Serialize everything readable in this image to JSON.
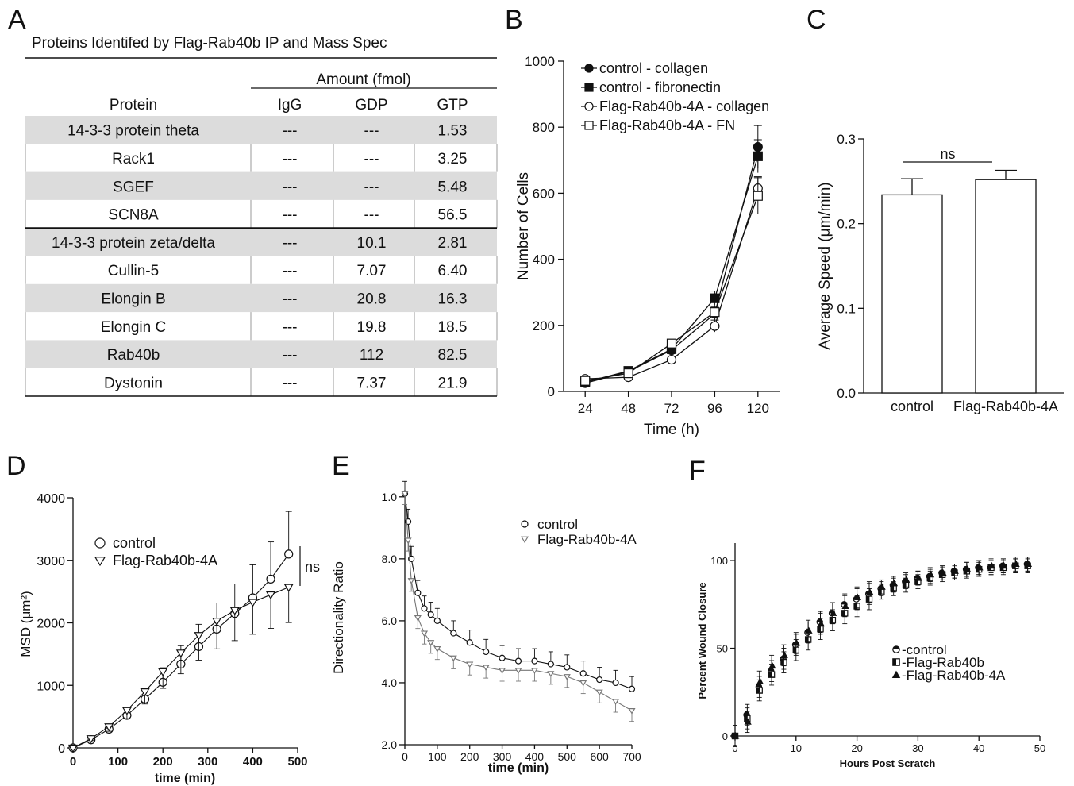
{
  "panel_letters": [
    "A",
    "B",
    "C",
    "D",
    "E",
    "F"
  ],
  "chart_data": [
    {
      "panel": "A",
      "type": "table",
      "title": "Proteins Identifed by Flag-Rab40b IP and Mass Spec",
      "group_header": "Amount (fmol)",
      "columns": [
        "Protein",
        "IgG",
        "GDP",
        "GTP"
      ],
      "rows": [
        [
          "14-3-3 protein theta",
          "---",
          "---",
          "1.53"
        ],
        [
          "Rack1",
          "---",
          "---",
          "3.25"
        ],
        [
          "SGEF",
          "---",
          "---",
          "5.48"
        ],
        [
          "SCN8A",
          "---",
          "---",
          "56.5"
        ],
        [
          "14-3-3 protein zeta/delta",
          "---",
          "10.1",
          "2.81"
        ],
        [
          "Cullin-5",
          "---",
          "7.07",
          "6.40"
        ],
        [
          "Elongin B",
          "---",
          "20.8",
          "16.3"
        ],
        [
          "Elongin C",
          "---",
          "19.8",
          "18.5"
        ],
        [
          "Rab40b",
          "---",
          "112",
          "82.5"
        ],
        [
          "Dystonin",
          "---",
          "7.37",
          "21.9"
        ]
      ]
    },
    {
      "panel": "B",
      "type": "line",
      "title": "",
      "xlabel": "Time (h)",
      "ylabel": "Number of Cells",
      "xlim": [
        12,
        132
      ],
      "ylim": [
        0,
        1000
      ],
      "xticks": [
        "24",
        "48",
        "72",
        "96",
        "120"
      ],
      "yticks": [
        "0",
        "200",
        "400",
        "600",
        "800",
        "1000"
      ],
      "x": [
        24,
        48,
        72,
        96,
        120
      ],
      "legend_position": "top-left",
      "series": [
        {
          "name": "control - collagen",
          "marker": "circle-filled",
          "values": [
            25,
            60,
            125,
            235,
            740
          ],
          "err": [
            6,
            8,
            12,
            20,
            65
          ]
        },
        {
          "name": "control - fibronectin",
          "marker": "square-filled",
          "values": [
            28,
            62,
            128,
            282,
            712
          ],
          "err": [
            6,
            8,
            12,
            22,
            50
          ]
        },
        {
          "name": "Flag-Rab40b-4A - collagen",
          "marker": "circle-open",
          "values": [
            38,
            43,
            96,
            198,
            615
          ],
          "err": [
            6,
            8,
            10,
            18,
            35
          ]
        },
        {
          "name": "Flag-Rab40b-4A - FN",
          "marker": "square-open",
          "values": [
            32,
            55,
            145,
            240,
            592
          ],
          "err": [
            6,
            8,
            12,
            18,
            55
          ]
        }
      ]
    },
    {
      "panel": "C",
      "type": "bar",
      "title": "",
      "xlabel": "",
      "ylabel": "Average Speed (μm/min)",
      "ylim": [
        0,
        0.3
      ],
      "yticks": [
        "0.0",
        "0.1",
        "0.2",
        "0.3"
      ],
      "categories": [
        "control",
        "Flag-Rab40b-4A"
      ],
      "values": [
        0.234,
        0.252
      ],
      "err": [
        0.019,
        0.011
      ],
      "annotation": "ns"
    },
    {
      "panel": "D",
      "type": "line",
      "title": "",
      "xlabel": "time (min)",
      "ylabel": "MSD (μm²)",
      "xlim": [
        0,
        500
      ],
      "ylim": [
        0,
        4000
      ],
      "xticks": [
        "0",
        "100",
        "200",
        "300",
        "400",
        "500"
      ],
      "yticks": [
        "0",
        "1000",
        "2000",
        "3000",
        "4000"
      ],
      "legend_position": "top-left",
      "annotation": "ns",
      "series": [
        {
          "name": "control",
          "marker": "circle-open",
          "x": [
            0,
            40,
            80,
            120,
            160,
            200,
            240,
            280,
            320,
            360,
            400,
            440,
            480
          ],
          "values": [
            0,
            130,
            300,
            520,
            780,
            1050,
            1340,
            1620,
            1900,
            2150,
            2400,
            2700,
            3100
          ]
        },
        {
          "name": "Flag-Rab40b-4A",
          "marker": "triangle-down-open",
          "x": [
            0,
            40,
            80,
            120,
            160,
            200,
            240,
            280,
            320,
            360,
            400,
            440,
            480
          ],
          "values": [
            0,
            150,
            340,
            600,
            900,
            1220,
            1520,
            1800,
            2030,
            2200,
            2330,
            2450,
            2570
          ]
        }
      ]
    },
    {
      "panel": "E",
      "type": "line",
      "title": "",
      "xlabel": "time (min)",
      "ylabel": "Directionality Ratio",
      "xlim": [
        0,
        700
      ],
      "ylim": [
        2.0,
        10.2
      ],
      "xticks": [
        "0",
        "100",
        "200",
        "300",
        "400",
        "500",
        "600",
        "700"
      ],
      "yticks": [
        "2.0",
        "4.0",
        "6.0",
        "8.0",
        "1.0"
      ],
      "legend_position": "top-right",
      "series": [
        {
          "name": "control",
          "marker": "circle-open",
          "x": [
            0,
            10,
            20,
            40,
            60,
            80,
            100,
            150,
            200,
            250,
            300,
            350,
            400,
            450,
            500,
            550,
            600,
            650,
            700
          ],
          "values": [
            10.1,
            9.2,
            8.0,
            6.9,
            6.4,
            6.2,
            6.0,
            5.6,
            5.3,
            5.0,
            4.8,
            4.7,
            4.7,
            4.6,
            4.5,
            4.3,
            4.1,
            4.0,
            3.8
          ]
        },
        {
          "name": "Flag-Rab40b-4A",
          "marker": "triangle-down-open",
          "x": [
            0,
            10,
            20,
            40,
            60,
            80,
            100,
            150,
            200,
            250,
            300,
            350,
            400,
            450,
            500,
            550,
            600,
            650,
            700
          ],
          "values": [
            10.1,
            8.6,
            7.3,
            6.1,
            5.6,
            5.3,
            5.1,
            4.8,
            4.6,
            4.5,
            4.4,
            4.4,
            4.4,
            4.3,
            4.2,
            4.0,
            3.7,
            3.4,
            3.1
          ]
        }
      ]
    },
    {
      "panel": "F",
      "type": "scatter",
      "title": "",
      "xlabel": "Hours Post Scratch",
      "ylabel": "Percent Wound Closure",
      "xlim": [
        0,
        50
      ],
      "ylim": [
        0,
        110
      ],
      "xticks": [
        "0",
        "10",
        "20",
        "30",
        "40",
        "50"
      ],
      "yticks": [
        "0",
        "50",
        "100"
      ],
      "legend_position": "bottom-right",
      "x": [
        0,
        2,
        4,
        6,
        8,
        10,
        12,
        14,
        16,
        18,
        20,
        22,
        24,
        26,
        28,
        30,
        32,
        34,
        36,
        38,
        40,
        42,
        44,
        46,
        48
      ],
      "series": [
        {
          "name": "-control",
          "marker": "circle-half",
          "values": [
            0,
            12,
            28,
            37,
            44,
            52,
            59,
            65,
            70,
            75,
            78,
            81,
            84,
            86,
            88,
            90,
            91,
            93,
            94,
            95,
            96,
            96,
            97,
            97,
            98
          ]
        },
        {
          "name": "-Flag-Rab40b",
          "marker": "square-half",
          "values": [
            0,
            10,
            26,
            35,
            42,
            49,
            55,
            61,
            66,
            70,
            74,
            78,
            82,
            84,
            86,
            88,
            90,
            92,
            93,
            94,
            95,
            96,
            96,
            97,
            97
          ]
        },
        {
          "name": "-Flag-Rab40b-4A",
          "marker": "triangle-filled",
          "values": [
            0,
            8,
            31,
            40,
            46,
            53,
            60,
            64,
            70,
            74,
            79,
            82,
            85,
            87,
            89,
            90,
            92,
            93,
            94,
            95,
            96,
            97,
            97,
            98,
            98
          ]
        }
      ]
    }
  ]
}
